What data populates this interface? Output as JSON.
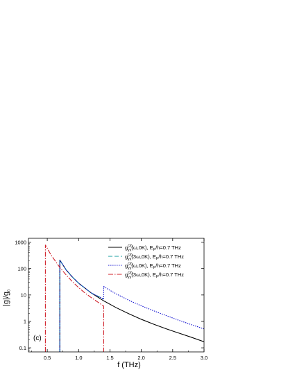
{
  "chart_data": {
    "type": "line",
    "title": "",
    "panel_label": "(c)",
    "xlabel": "f (THz)",
    "ylabel": {
      "main": "|g|/g",
      "sub": "0"
    },
    "xlim": [
      0.2,
      3.0
    ],
    "ylim": [
      0.07,
      1400
    ],
    "yscale": "log",
    "grid": false,
    "legend_position": "top-right",
    "x_ticks": [
      0.5,
      1.0,
      1.5,
      2.0,
      2.5,
      3.0
    ],
    "x_tick_labels": [
      "0.5",
      "1.0",
      "1.5",
      "2.0",
      "2.5",
      "3.0"
    ],
    "y_ticks": [
      0.1,
      1,
      10,
      100,
      1000
    ],
    "y_tick_labels": [
      "0.1",
      "1",
      "10",
      "100",
      "1000"
    ],
    "series": [
      {
        "legend": {
          "g": "g",
          "sup": "(3)",
          "sub": "yx",
          "rest": "(ω,0K), E",
          "sub2": "F",
          "tail": "/h=0.7 THz"
        },
        "color": "#000000",
        "dash": "none",
        "width": 1.1,
        "segments": [
          {
            "x": [
              0.7,
              0.7,
              0.8,
              0.9,
              1.0,
              1.2,
              1.4,
              1.6,
              1.8,
              2.0,
              2.2,
              2.4,
              2.6,
              2.8,
              3.0
            ],
            "y": [
              0.07,
              210,
              90,
              48,
              28,
              12,
              6.0,
              3.3,
              1.95,
              1.2,
              0.78,
              0.52,
              0.36,
              0.25,
              0.17
            ]
          }
        ]
      },
      {
        "legend": {
          "g": "g",
          "sup": "(3)",
          "sub": "yx",
          "rest": "(3ω,0K), E",
          "sub2": "F",
          "tail": "/h=0.7 THz"
        },
        "color": "#1a9fa0",
        "dash": "6,3",
        "width": 1.1,
        "segments": [
          {
            "x": [
              0.7,
              0.7,
              0.8,
              0.9,
              1.0,
              1.2,
              1.4
            ],
            "y": [
              0.07,
              210,
              90,
              48,
              28,
              12,
              7.0
            ]
          }
        ]
      },
      {
        "legend": {
          "g": "g",
          "sup": "(3)",
          "sub": "yy",
          "rest": "(ω,0K), E",
          "sub2": "F",
          "tail": "/h=0.7 THz"
        },
        "color": "#1010d0",
        "dash": "1.5,1.5",
        "width": 1.1,
        "segments": [
          {
            "x": [
              0.7,
              0.7,
              0.8,
              0.9,
              1.0,
              1.2,
              1.4
            ],
            "y": [
              0.07,
              210,
              90,
              48,
              28,
              12,
              7.0
            ]
          },
          {
            "x": [
              1.4,
              1.4,
              1.5,
              1.6,
              1.8,
              2.0,
              2.2,
              2.4,
              2.6,
              2.8,
              3.0
            ],
            "y": [
              7.0,
              21,
              15,
              11,
              6.3,
              3.9,
              2.5,
              1.65,
              1.1,
              0.75,
              0.52
            ]
          }
        ]
      },
      {
        "legend": {
          "g": "g",
          "sup": "(3)",
          "sub": "yy",
          "rest": "(3ω,0K), E",
          "sub2": "F",
          "tail": "/h=0.7 THz"
        },
        "color": "#d0202a",
        "dash": "7,2,1.5,2",
        "width": 1.1,
        "segments": [
          {
            "x": [
              0.47,
              0.47,
              0.55,
              0.6,
              0.7,
              0.8,
              0.9,
              1.0,
              1.1,
              1.2,
              1.3,
              1.4,
              1.4
            ],
            "y": [
              0.07,
              780,
              360,
              240,
              110,
              58,
              32,
              19,
              12,
              8.0,
              5.5,
              3.8,
              0.07
            ]
          }
        ]
      }
    ]
  }
}
